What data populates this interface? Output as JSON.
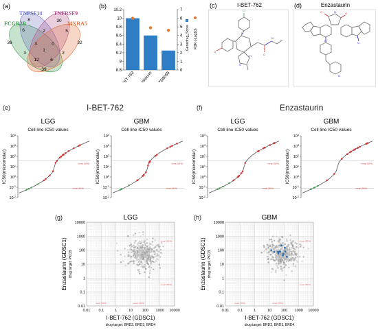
{
  "panels": {
    "a": "(a)",
    "b": "(b)",
    "c": "(c)",
    "d": "(d)",
    "e": "(e)",
    "f": "(f)",
    "g": "(g)",
    "h": "(h)"
  },
  "venn": {
    "sets": [
      {
        "name": "FCGR2B",
        "color": "#3a9a4a"
      },
      {
        "name": "TNFSF14",
        "color": "#6a70c0"
      },
      {
        "name": "TNFRSF9",
        "color": "#b0508a"
      },
      {
        "name": "MXRA5",
        "color": "#e0703a"
      }
    ],
    "counts": [
      "36",
      "8",
      "30",
      "32",
      "6",
      "2",
      "5",
      "3",
      "3",
      "0",
      "1",
      "12",
      "6",
      "2",
      "39"
    ]
  },
  "chart_data": [
    {
      "type": "bar",
      "panel": "b",
      "categories": [
        "I-BET-762",
        "Enzastaurin",
        "AZD8055"
      ],
      "series": [
        {
          "name": "Gene-drug_Score",
          "values": [
            10.0,
            9.6,
            9.25
          ],
          "axis": "left",
          "color": "#2f7dc4"
        },
        {
          "name": "FDR (-Log10)",
          "values": [
            6.0,
            4.9,
            4.6
          ],
          "axis": "right",
          "color": "#e8762b"
        }
      ],
      "ylim": [
        8.8,
        10.2
      ],
      "yticks": [
        "8.8",
        "9",
        "9.2",
        "9.4",
        "9.6",
        "9.8",
        "10",
        "10.2"
      ],
      "y2lim": [
        0,
        7
      ],
      "y2ticks": [
        "0",
        "1",
        "2",
        "3",
        "4",
        "5",
        "6",
        "7"
      ],
      "legend": [
        "Genedrug_Score",
        "FDR (-Log10)"
      ]
    },
    {
      "type": "scatter",
      "panel": "e-LGG",
      "title": "LGG",
      "subtitle": "Cell line IC50 values",
      "ylabel": "IC50(micromolar)",
      "yticks": [
        "10^4",
        "10^3",
        "10^2",
        "10^1",
        "10^0",
        "10^-1",
        "10^-2"
      ],
      "annotations": [
        "mean (50%)",
        "mean (50%)"
      ]
    },
    {
      "type": "scatter",
      "panel": "e-GBM",
      "title": "GBM",
      "subtitle": "Cell line IC50 values",
      "ylabel": "IC50(micromolar)",
      "yticks": [
        "10^4",
        "10^3",
        "10^2",
        "10^1",
        "10^0",
        "10^-1",
        "10^-2"
      ],
      "annotations": [
        "mean (50%)",
        "mean (50%)"
      ]
    },
    {
      "type": "scatter",
      "panel": "f-LGG",
      "title": "LGG",
      "subtitle": "Cell line IC50 values",
      "ylabel": "IC50(micromolar)",
      "yticks": [
        "10^4",
        "10^3",
        "10^2",
        "10^1",
        "10^0",
        "10^-1",
        "10^-2"
      ],
      "annotations": [
        "mean (50%)",
        "mean (50%)"
      ]
    },
    {
      "type": "scatter",
      "panel": "f-GBM",
      "title": "GBM",
      "subtitle": "Cell line IC50 values",
      "ylabel": "IC50(micromolar)",
      "yticks": [
        "10^4",
        "10^3",
        "10^2",
        "10^1",
        "10^0",
        "10^-1",
        "10^-2"
      ],
      "annotations": [
        "mean (50%)",
        "mean (50%)"
      ]
    },
    {
      "type": "scatter",
      "panel": "g",
      "title": "LGG",
      "xlabel": "I-BET-762 (GDSC1)",
      "xsublabel": "drug target: BRD2, BRD3, BRD4",
      "ylabel": "Enzastaurin (GDSC1)",
      "ysublabel": "drug target: PKCB",
      "ticks": [
        "0.01",
        "0.1",
        "1",
        "10",
        "100",
        "1000",
        "10000"
      ],
      "xlim": [
        0.01,
        10000
      ],
      "ylim": [
        0.01,
        10000
      ]
    },
    {
      "type": "scatter",
      "panel": "h",
      "title": "GBM",
      "xlabel": "I-BET-762 (GDSC1)",
      "xsublabel": "drug target: BRD2, BRD3, BRD4",
      "ylabel": "Enzastaurin (GDSC1)",
      "ysublabel": "drug target: PKCB",
      "ticks": [
        "0.01",
        "0.1",
        "1",
        "10",
        "100",
        "1000",
        "10000"
      ],
      "xlim": [
        0.01,
        10000
      ],
      "ylim": [
        0.01,
        10000
      ]
    }
  ],
  "molecules": {
    "c": "I-BET-762",
    "d": "Enzastaurin"
  },
  "headings": {
    "e": "I-BET-762",
    "f": "Enzastaurin"
  }
}
